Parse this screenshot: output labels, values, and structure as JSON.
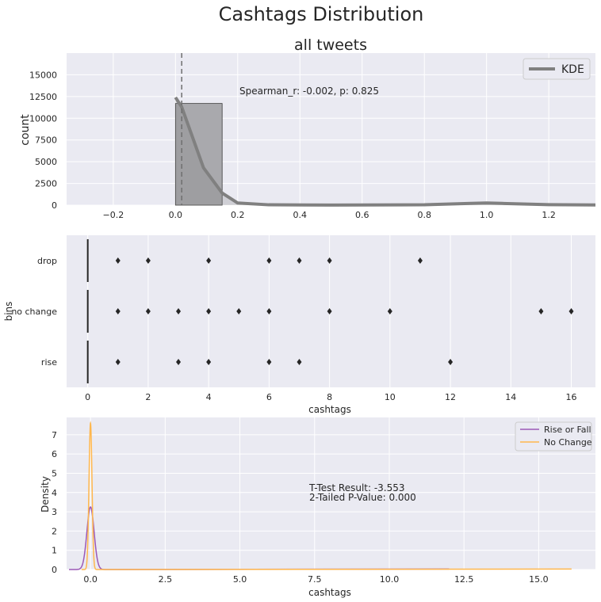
{
  "suptitle": "Cashtags Distribution",
  "colors": {
    "axes_bg": "#eaeaf2",
    "grid": "#ffffff",
    "hist_fill": "#a9a9ad",
    "kde_gray": "#808080",
    "rise_or_fall": "#9b59b6",
    "no_change": "#ffb74d",
    "outlier": "#262626"
  },
  "chart_data": [
    {
      "type": "histogram",
      "title": "all tweets",
      "xlabel": "",
      "ylabel": "count",
      "xlim": [
        -0.35,
        1.35
      ],
      "ylim": [
        0,
        17500
      ],
      "xticks": [
        -0.2,
        0.0,
        0.2,
        0.4,
        0.6,
        0.8,
        1.0,
        1.2
      ],
      "xtick_labels": [
        "−0.2",
        "0.0",
        "0.2",
        "0.4",
        "0.6",
        "0.8",
        "1.0",
        "1.2"
      ],
      "yticks": [
        0,
        2500,
        5000,
        7500,
        10000,
        12500,
        15000
      ],
      "ytick_labels": [
        "0",
        "2500",
        "5000",
        "7500",
        "10000",
        "12500",
        "15000"
      ],
      "bars": [
        {
          "x0": 0.0,
          "x1": 0.15,
          "count": 11700
        }
      ],
      "kde": {
        "name": "KDE",
        "x": [
          0.0,
          0.02,
          0.09,
          0.15,
          0.2,
          0.3,
          0.5,
          0.8,
          0.95,
          1.0,
          1.05,
          1.2,
          1.35
        ],
        "y": [
          12400,
          11300,
          4300,
          1400,
          250,
          40,
          15,
          40,
          200,
          250,
          200,
          60,
          20
        ]
      },
      "mean_line_x": 0.02,
      "annotation": "Spearman_r: -0.002, p: 0.825",
      "legend": [
        "KDE"
      ],
      "legend_loc": "top-right"
    },
    {
      "type": "box",
      "xlabel": "cashtags",
      "ylabel": "bins",
      "xlim": [
        -0.7,
        16.8
      ],
      "xticks": [
        0,
        2,
        4,
        6,
        8,
        10,
        12,
        14,
        16
      ],
      "xtick_labels": [
        "0",
        "2",
        "4",
        "6",
        "8",
        "10",
        "12",
        "14",
        "16"
      ],
      "categories": [
        "drop",
        "no change",
        "rise"
      ],
      "medians": [
        0,
        0,
        0
      ],
      "outliers": [
        [
          1,
          2,
          4,
          6,
          7,
          8,
          11
        ],
        [
          1,
          2,
          3,
          4,
          5,
          6,
          8,
          10,
          15,
          16
        ],
        [
          1,
          3,
          4,
          6,
          7,
          12
        ]
      ]
    },
    {
      "type": "line",
      "xlabel": "cashtags",
      "ylabel": "Density",
      "xlim": [
        -0.8,
        16.9
      ],
      "ylim": [
        0,
        7.9
      ],
      "xticks": [
        0.0,
        2.5,
        5.0,
        7.5,
        10.0,
        12.5,
        15.0
      ],
      "xtick_labels": [
        "0.0",
        "2.5",
        "5.0",
        "7.5",
        "10.0",
        "12.5",
        "15.0"
      ],
      "yticks": [
        0,
        1,
        2,
        3,
        4,
        5,
        6,
        7
      ],
      "ytick_labels": [
        "0",
        "1",
        "2",
        "3",
        "4",
        "5",
        "6",
        "7"
      ],
      "series": [
        {
          "name": "Rise or Fall",
          "peak_x": 0.0,
          "peak_y": 3.25,
          "sigma": 0.12,
          "x_max": 12.0
        },
        {
          "name": "No Change",
          "peak_x": 0.0,
          "peak_y": 7.6,
          "sigma": 0.05,
          "x_max": 16.1
        }
      ],
      "annotation_lines": [
        "T-Test Result: -3.553",
        " 2-Tailed P-Value: 0.000"
      ],
      "legend_loc": "top-right"
    }
  ]
}
